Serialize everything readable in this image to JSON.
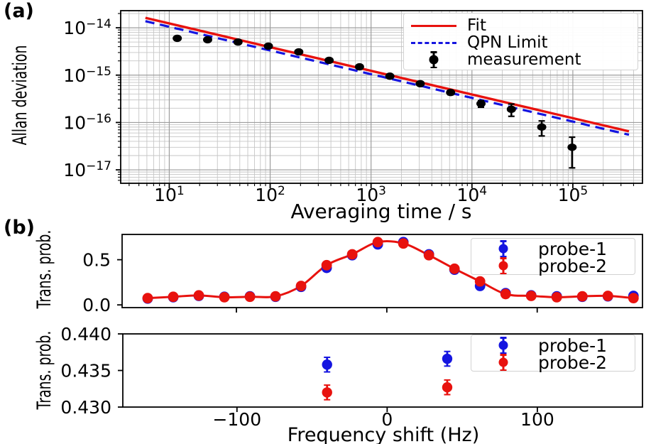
{
  "figure": {
    "panel_a_tag": "(a)",
    "panel_b_tag": "(b)"
  },
  "colors": {
    "red": "#e8120e",
    "blue": "#1515e0",
    "black": "#000000"
  },
  "chart_data": [
    {
      "id": "panel-a-allan-deviation",
      "type": "scatter",
      "xscale": "log",
      "yscale": "log",
      "xlabel": "Averaging time / s",
      "ylabel": "Allan deviation",
      "xlim": [
        3.3,
        490000
      ],
      "ylim": [
        5.2e-18,
        2.3e-14
      ],
      "grid": true,
      "legend_position": "upper right",
      "x_ticks": [
        {
          "v": 10,
          "exp": "1"
        },
        {
          "v": 100,
          "exp": "2"
        },
        {
          "v": 1000,
          "exp": "3"
        },
        {
          "v": 10000,
          "exp": "4"
        },
        {
          "v": 100000,
          "exp": "5"
        }
      ],
      "y_ticks": [
        {
          "v": 1e-14,
          "exp": "−14"
        },
        {
          "v": 1e-15,
          "exp": "−15"
        },
        {
          "v": 1e-16,
          "exp": "−16"
        },
        {
          "v": 1e-17,
          "exp": "−17"
        }
      ],
      "series": [
        {
          "name": "Fit",
          "type": "line",
          "style": "solid",
          "color": "#e8120e",
          "x": [
            5.8,
            360000
          ],
          "y": [
            1.62e-14,
            6.5e-17
          ]
        },
        {
          "name": "QPN Limit",
          "type": "line",
          "style": "dashed",
          "color": "#1515e0",
          "x": [
            5.8,
            360000
          ],
          "y": [
            1.38e-14,
            5.5e-17
          ]
        },
        {
          "name": "measurement",
          "type": "errorbar",
          "color": "#000000",
          "x": [
            12,
            24,
            48,
            96,
            192,
            384,
            768,
            1536,
            3072,
            6144,
            12288,
            24576,
            49152,
            98304
          ],
          "y": [
            6e-15,
            5.6e-15,
            5e-15,
            4.1e-15,
            3.1e-15,
            2.05e-15,
            1.5e-15,
            9.5e-16,
            6.6e-16,
            4.3e-16,
            2.5e-16,
            1.9e-16,
            8e-17,
            3e-17
          ],
          "yerr": [
            1e-16,
            1e-16,
            9e-17,
            8e-17,
            7e-17,
            6e-17,
            5e-17,
            4.5e-17,
            4e-17,
            4.5e-17,
            4e-17,
            5.5e-17,
            2.8e-17,
            1.9e-17
          ]
        }
      ]
    },
    {
      "id": "panel-b-transition-spectrum",
      "type": "scatter",
      "xscale": "linear",
      "yscale": "linear",
      "xlabel": "",
      "ylabel": "Trans. prob.",
      "xlim": [
        -176,
        170
      ],
      "ylim": [
        -0.03,
        0.78
      ],
      "grid": false,
      "legend_position": "upper right",
      "x_ticks": [
        {
          "v": -100
        },
        {
          "v": 0
        },
        {
          "v": 100
        }
      ],
      "y_ticks": [
        {
          "v": 0.0,
          "label": "0.0"
        },
        {
          "v": 0.5,
          "label": "0.5"
        }
      ],
      "series": [
        {
          "name": "probe-1",
          "type": "errorbar",
          "color": "#1515e0",
          "yerr": 0.008,
          "x": [
            -159,
            -142,
            -125,
            -108,
            -91,
            -74,
            -57,
            -40,
            -23,
            -6,
            11,
            28,
            45,
            62,
            79,
            96,
            113,
            130,
            147,
            164
          ],
          "y": [
            0.07,
            0.085,
            0.1,
            0.09,
            0.095,
            0.09,
            0.2,
            0.41,
            0.55,
            0.67,
            0.695,
            0.56,
            0.39,
            0.21,
            0.13,
            0.105,
            0.095,
            0.09,
            0.095,
            0.1
          ]
        },
        {
          "name": "probe-2",
          "type": "errorbar",
          "color": "#e8120e",
          "yerr": 0.008,
          "fit_line": true,
          "x": [
            -159,
            -142,
            -125,
            -108,
            -91,
            -74,
            -57,
            -40,
            -23,
            -6,
            11,
            28,
            45,
            62,
            79,
            96,
            113,
            130,
            147,
            164
          ],
          "y": [
            0.075,
            0.09,
            0.105,
            0.085,
            0.09,
            0.095,
            0.21,
            0.44,
            0.56,
            0.695,
            0.68,
            0.55,
            0.4,
            0.26,
            0.12,
            0.1,
            0.085,
            0.095,
            0.1,
            0.075
          ]
        }
      ]
    },
    {
      "id": "panel-b-probe-comparison",
      "type": "scatter",
      "xscale": "linear",
      "yscale": "linear",
      "xlabel": "Frequency shift (Hz)",
      "ylabel": "Trans. prob.",
      "xlim": [
        -176,
        170
      ],
      "ylim": [
        0.43,
        0.44
      ],
      "grid": false,
      "legend_position": "upper right",
      "x_ticks": [
        {
          "v": -100,
          "label": "−100"
        },
        {
          "v": 0,
          "label": "0"
        },
        {
          "v": 100,
          "label": "100"
        }
      ],
      "y_ticks": [
        {
          "v": 0.43,
          "label": "0.430"
        },
        {
          "v": 0.435,
          "label": "0.435"
        },
        {
          "v": 0.44,
          "label": "0.440"
        }
      ],
      "series": [
        {
          "name": "probe-1",
          "type": "errorbar",
          "color": "#1515e0",
          "x": [
            -40,
            40
          ],
          "y": [
            0.4358,
            0.4366
          ],
          "yerr": [
            0.001,
            0.001
          ]
        },
        {
          "name": "probe-2",
          "type": "errorbar",
          "color": "#e8120e",
          "x": [
            -40,
            40
          ],
          "y": [
            0.432,
            0.4327
          ],
          "yerr": [
            0.001,
            0.001
          ]
        }
      ]
    }
  ]
}
